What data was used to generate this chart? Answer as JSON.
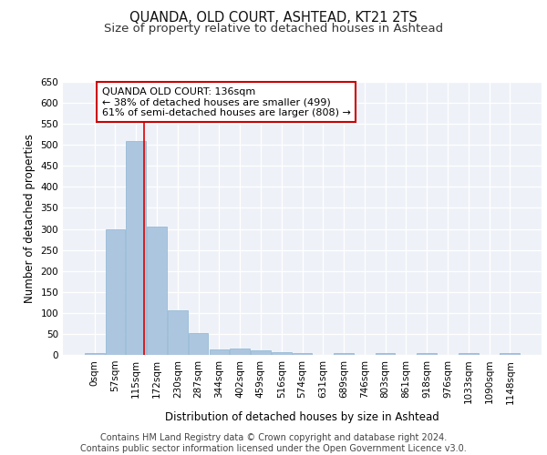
{
  "title": "QUANDA, OLD COURT, ASHTEAD, KT21 2TS",
  "subtitle": "Size of property relative to detached houses in Ashtead",
  "xlabel": "Distribution of detached houses by size in Ashtead",
  "ylabel": "Number of detached properties",
  "bin_labels": [
    "0sqm",
    "57sqm",
    "115sqm",
    "172sqm",
    "230sqm",
    "287sqm",
    "344sqm",
    "402sqm",
    "459sqm",
    "516sqm",
    "574sqm",
    "631sqm",
    "689sqm",
    "746sqm",
    "803sqm",
    "861sqm",
    "918sqm",
    "976sqm",
    "1033sqm",
    "1090sqm",
    "1148sqm"
  ],
  "bar_values": [
    5,
    300,
    510,
    305,
    107,
    53,
    14,
    15,
    10,
    7,
    5,
    0,
    5,
    0,
    5,
    0,
    5,
    0,
    5,
    0,
    4
  ],
  "bar_color": "#adc6e0",
  "bar_edgecolor": "#8ab4d0",
  "red_line_x": 2.38,
  "annotation_line1": "QUANDA OLD COURT: 136sqm",
  "annotation_line2": "← 38% of detached houses are smaller (499)",
  "annotation_line3": "61% of semi-detached houses are larger (808) →",
  "annotation_box_color": "#ffffff",
  "annotation_box_edgecolor": "#cc0000",
  "ylim": [
    0,
    650
  ],
  "yticks": [
    0,
    50,
    100,
    150,
    200,
    250,
    300,
    350,
    400,
    450,
    500,
    550,
    600,
    650
  ],
  "footer_text": "Contains HM Land Registry data © Crown copyright and database right 2024.\nContains public sector information licensed under the Open Government Licence v3.0.",
  "background_color": "#eef2f8",
  "grid_color": "#ffffff",
  "title_fontsize": 10.5,
  "subtitle_fontsize": 9.5,
  "axis_label_fontsize": 8.5,
  "tick_fontsize": 7.5,
  "annotation_fontsize": 8.0,
  "footer_fontsize": 7.0
}
